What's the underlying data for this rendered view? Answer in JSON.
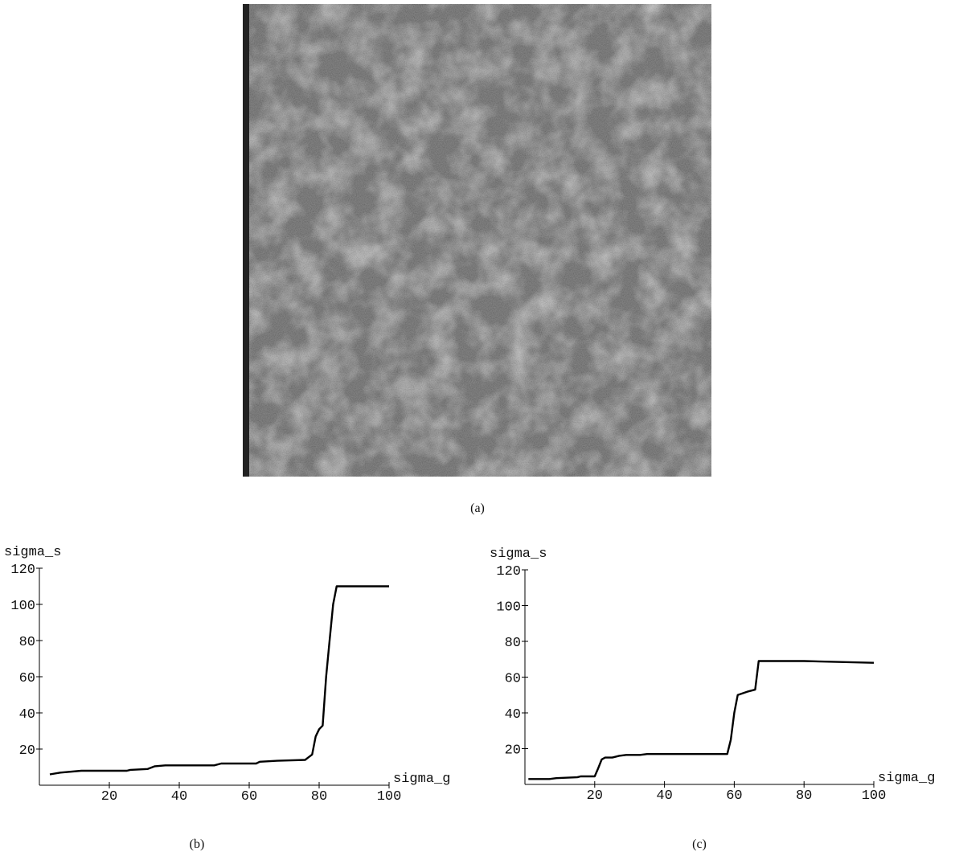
{
  "image_caption": "(a)",
  "chart_data": [
    {
      "type": "line",
      "caption": "(b)",
      "y_label": "sigma_s",
      "x_label": "sigma_g",
      "xlim": [
        0,
        100
      ],
      "ylim": [
        0,
        120
      ],
      "xticks": [
        20,
        40,
        60,
        80,
        100
      ],
      "yticks": [
        20,
        40,
        60,
        80,
        100,
        120
      ],
      "series": [
        {
          "color": "#000000",
          "x": [
            3,
            6,
            12,
            25,
            26,
            31,
            33,
            36,
            50,
            52,
            62,
            63,
            68,
            76,
            78,
            79,
            80,
            81,
            82,
            83,
            84,
            85,
            100
          ],
          "values": [
            6,
            7,
            8,
            8,
            8.5,
            9,
            10.5,
            11,
            11,
            12,
            12,
            13,
            13.5,
            14,
            17,
            27,
            31,
            33,
            60,
            80,
            100,
            110,
            110
          ]
        }
      ]
    },
    {
      "type": "line",
      "caption": "(c)",
      "y_label": "sigma_s",
      "x_label": "sigma_g",
      "xlim": [
        0,
        100
      ],
      "ylim": [
        0,
        120
      ],
      "xticks": [
        20,
        40,
        60,
        80,
        100
      ],
      "yticks": [
        20,
        40,
        60,
        80,
        100,
        120
      ],
      "series": [
        {
          "color": "#000000",
          "x": [
            1,
            7,
            9,
            15,
            16,
            20,
            21,
            22,
            23,
            25,
            27,
            29,
            33,
            35,
            58,
            59,
            60,
            61,
            64,
            66,
            67,
            80,
            100
          ],
          "values": [
            3,
            3,
            3.5,
            4,
            4.5,
            4.5,
            9,
            14,
            15,
            15,
            16,
            16.5,
            16.5,
            17,
            17,
            25,
            40,
            50,
            52,
            53,
            69,
            69,
            68
          ]
        }
      ]
    }
  ]
}
